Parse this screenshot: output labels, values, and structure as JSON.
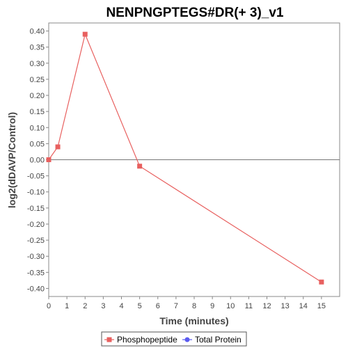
{
  "chart_data": {
    "type": "line",
    "title": "NENPNGPTEGS#DR(+ 3)_v1",
    "xlabel": "Time (minutes)",
    "ylabel": "log2(dDAVP/Control)",
    "xlim": [
      0,
      16
    ],
    "ylim": [
      -0.425,
      0.425
    ],
    "x_ticks": [
      0,
      1,
      2,
      3,
      4,
      5,
      6,
      7,
      8,
      9,
      10,
      11,
      12,
      13,
      14,
      15
    ],
    "y_ticks": [
      -0.4,
      -0.35,
      -0.3,
      -0.25,
      -0.2,
      -0.15,
      -0.1,
      -0.05,
      0.0,
      0.05,
      0.1,
      0.15,
      0.2,
      0.25,
      0.3,
      0.35,
      0.4
    ],
    "grid": false,
    "zero_line": true,
    "legend_position": "bottom",
    "series": [
      {
        "name": "Phosphopeptide",
        "color": "#e8605f",
        "marker": "square",
        "x": [
          0,
          0.5,
          2,
          5,
          15
        ],
        "y": [
          0.0,
          0.04,
          0.39,
          -0.02,
          -0.38
        ]
      },
      {
        "name": "Total Protein",
        "color": "#5b5bf0",
        "marker": "circle",
        "x": [],
        "y": []
      }
    ]
  }
}
